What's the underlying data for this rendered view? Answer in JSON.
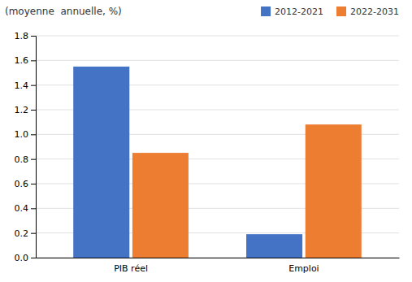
{
  "chart_data": {
    "type": "bar",
    "ylabel": "(moyenne  annuelle, %)",
    "categories": [
      "PIB réel",
      "Emploi"
    ],
    "series": [
      {
        "name": "2012-2021",
        "color": "#4472C4",
        "values": [
          1.55,
          0.19
        ]
      },
      {
        "name": "2022-2031",
        "color": "#ED7D31",
        "values": [
          0.85,
          1.08
        ]
      }
    ],
    "ylim": [
      0,
      1.8
    ],
    "yticks": [
      {
        "value": 0,
        "label": "0.0"
      },
      0.2,
      0.4,
      0.6,
      0.8,
      {
        "value": 1,
        "label": "1.0"
      },
      1.2,
      1.4,
      1.6,
      1.8
    ],
    "grid": true,
    "legend": "upper right"
  }
}
